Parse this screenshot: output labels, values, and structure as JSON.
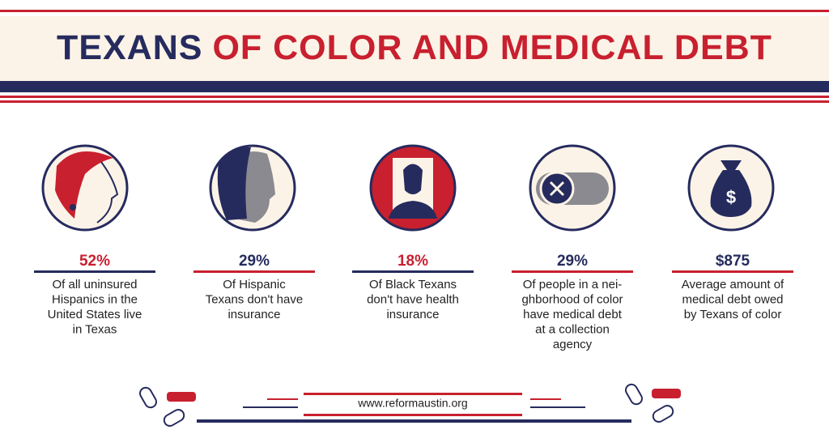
{
  "header": {
    "title_lead": "TEXANS",
    "title_rest": "OF COLOR AND MEDICAL DEBT"
  },
  "stats": [
    {
      "value": "52%",
      "lines": [
        "Of all uninsured",
        "Hispanics in the",
        "United States live",
        "in Texas"
      ]
    },
    {
      "value": "29%",
      "lines": [
        "Of Hispanic",
        "Texans don't have",
        "insurance"
      ]
    },
    {
      "value": "18%",
      "lines": [
        "Of Black Texans",
        "don't have health",
        "insurance"
      ]
    },
    {
      "value": "29%",
      "lines": [
        "Of people in a nei-",
        "ghborhood of color",
        "have medical debt",
        "at a collection",
        "agency"
      ]
    },
    {
      "value": "$875",
      "lines": [
        "Average amount of",
        "medical debt owed",
        "by Texans of color"
      ]
    }
  ],
  "footer": {
    "url": "www.reformaustin.org"
  }
}
